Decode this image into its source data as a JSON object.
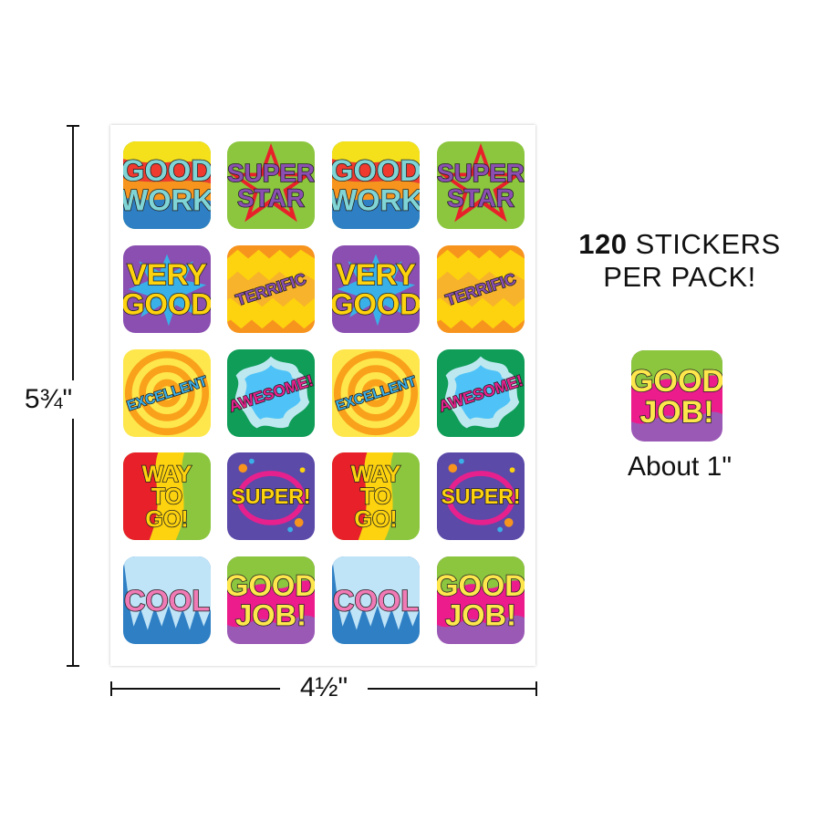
{
  "dimensions": {
    "height_label": "5¾\"",
    "width_label": "4½\""
  },
  "promo": {
    "count": "120",
    "line1_rest": "STICKERS",
    "line2": "PER PACK!"
  },
  "sample": {
    "size_label": "About 1\""
  },
  "stickers": [
    {
      "text": [
        "GOOD",
        "WORK"
      ],
      "theme": "rainbow"
    },
    {
      "text": [
        "SUPER",
        "STAR"
      ],
      "theme": "star"
    },
    {
      "text": [
        "GOOD",
        "WORK"
      ],
      "theme": "rainbow"
    },
    {
      "text": [
        "SUPER",
        "STAR"
      ],
      "theme": "star"
    },
    {
      "text": [
        "VERY",
        "GOOD"
      ],
      "theme": "burst-purple"
    },
    {
      "text": [
        "TERRIFIC"
      ],
      "theme": "zigzag"
    },
    {
      "text": [
        "VERY",
        "GOOD"
      ],
      "theme": "burst-purple"
    },
    {
      "text": [
        "TERRIFIC"
      ],
      "theme": "zigzag"
    },
    {
      "text": [
        "EXCELLENT"
      ],
      "theme": "swirl"
    },
    {
      "text": [
        "AWESOME!"
      ],
      "theme": "splash"
    },
    {
      "text": [
        "EXCELLENT"
      ],
      "theme": "swirl"
    },
    {
      "text": [
        "AWESOME!"
      ],
      "theme": "splash"
    },
    {
      "text": [
        "WAY",
        "TO",
        "GO!"
      ],
      "theme": "wave"
    },
    {
      "text": [
        "SUPER!"
      ],
      "theme": "dots"
    },
    {
      "text": [
        "WAY",
        "TO",
        "GO!"
      ],
      "theme": "wave"
    },
    {
      "text": [
        "SUPER!"
      ],
      "theme": "dots"
    },
    {
      "text": [
        "COOL"
      ],
      "theme": "ice"
    },
    {
      "text": [
        "GOOD",
        "JOB!"
      ],
      "theme": "swirl-pink"
    },
    {
      "text": [
        "COOL"
      ],
      "theme": "ice"
    },
    {
      "text": [
        "GOOD",
        "JOB!"
      ],
      "theme": "swirl-pink"
    }
  ],
  "sample_sticker": {
    "text": [
      "GOOD",
      "JOB!"
    ],
    "theme": "swirl-pink"
  }
}
